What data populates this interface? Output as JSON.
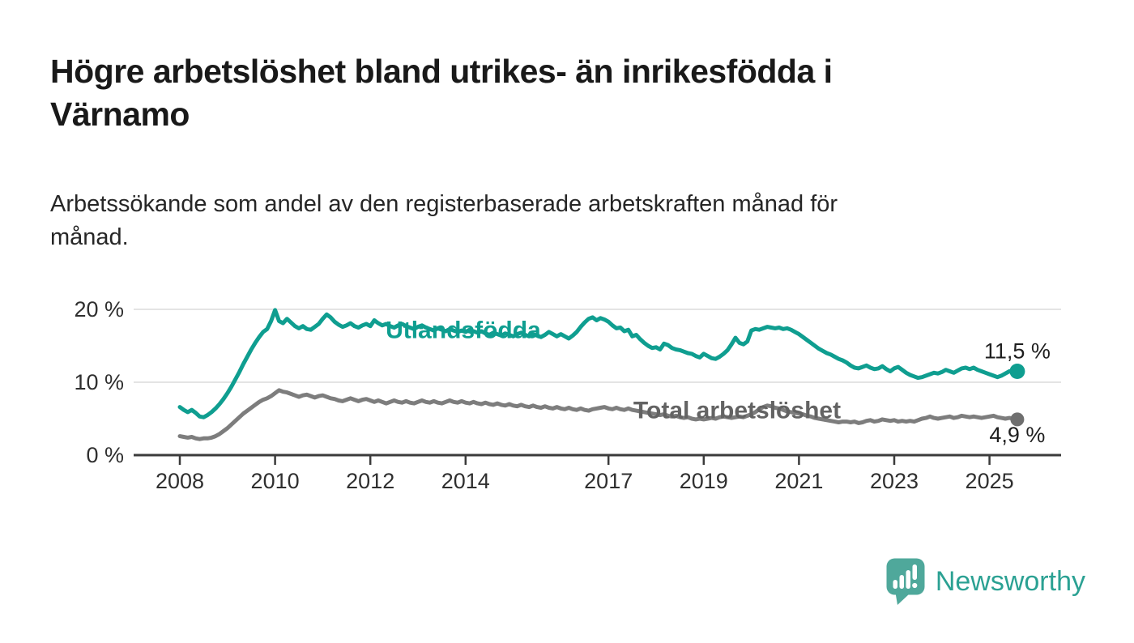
{
  "header": {
    "title_lines": [
      "Högre arbetslöshet bland utrikes- än inrikesfödda i",
      "Värnamo"
    ],
    "subtitle_lines": [
      "Arbetssökande som andel av den registerbaserade arbetskraften månad för",
      "månad."
    ]
  },
  "chart_data": {
    "type": "line",
    "title": "Högre arbetslöshet bland utrikes- än inrikesfödda i Värnamo",
    "subtitle": "Arbetssökande som andel av den registerbaserade arbetskraften månad för månad.",
    "x_unit": "month",
    "x_start": "2008-01",
    "x_end": "2025-08",
    "x_tick_years": [
      "2008",
      "2010",
      "2012",
      "2014",
      "2017",
      "2019",
      "2021",
      "2023",
      "2025"
    ],
    "y_ticks": [
      {
        "value": 0,
        "label": "0 %"
      },
      {
        "value": 10,
        "label": "10 %"
      },
      {
        "value": 20,
        "label": "20 %"
      }
    ],
    "ylim": [
      0,
      21
    ],
    "grid": true,
    "legend_position": "inline-labels",
    "series": [
      {
        "name": "Utlandsfödda",
        "color": "#0f9e90",
        "label_color": "#0f9e90",
        "end_label": "11,5 %",
        "end_value": 11.5,
        "label_anchor": {
          "year": 2013.95,
          "value": 17.3
        },
        "values": [
          6.6,
          6.2,
          5.9,
          6.2,
          5.8,
          5.3,
          5.2,
          5.5,
          5.9,
          6.4,
          7.0,
          7.7,
          8.5,
          9.4,
          10.4,
          11.4,
          12.5,
          13.5,
          14.5,
          15.4,
          16.2,
          16.9,
          17.3,
          18.4,
          19.9,
          18.4,
          18.1,
          18.7,
          18.2,
          17.7,
          17.4,
          17.7,
          17.3,
          17.2,
          17.6,
          18.0,
          18.7,
          19.3,
          18.9,
          18.3,
          17.9,
          17.6,
          17.8,
          18.1,
          17.7,
          17.5,
          17.8,
          18.0,
          17.7,
          18.5,
          18.1,
          17.8,
          18.0,
          17.7,
          17.5,
          17.8,
          18.0,
          17.7,
          17.5,
          17.3,
          17.6,
          17.8,
          17.5,
          17.3,
          17.1,
          17.4,
          17.2,
          17.0,
          17.3,
          17.1,
          16.9,
          17.1,
          16.9,
          17.2,
          17.0,
          16.8,
          17.0,
          16.7,
          16.5,
          16.8,
          16.6,
          16.4,
          16.7,
          16.5,
          16.3,
          16.6,
          16.8,
          16.5,
          16.3,
          16.6,
          16.4,
          16.2,
          16.5,
          16.9,
          16.6,
          16.3,
          16.6,
          16.3,
          16.0,
          16.4,
          16.9,
          17.6,
          18.2,
          18.7,
          18.9,
          18.5,
          18.8,
          18.6,
          18.3,
          17.8,
          17.4,
          17.5,
          17.0,
          17.2,
          16.3,
          16.5,
          15.9,
          15.4,
          15.0,
          14.7,
          14.8,
          14.5,
          15.3,
          15.1,
          14.7,
          14.5,
          14.4,
          14.2,
          14.0,
          13.9,
          13.6,
          13.4,
          13.9,
          13.6,
          13.3,
          13.2,
          13.5,
          13.9,
          14.4,
          15.2,
          16.1,
          15.4,
          15.2,
          15.6,
          17.1,
          17.3,
          17.2,
          17.4,
          17.6,
          17.5,
          17.4,
          17.5,
          17.3,
          17.4,
          17.2,
          16.9,
          16.6,
          16.2,
          15.8,
          15.4,
          15.0,
          14.6,
          14.3,
          14.0,
          13.8,
          13.5,
          13.2,
          13.0,
          12.7,
          12.3,
          12.0,
          11.9,
          12.1,
          12.3,
          12.0,
          11.8,
          11.9,
          12.2,
          11.8,
          11.5,
          11.9,
          12.1,
          11.7,
          11.3,
          11.0,
          10.8,
          10.6,
          10.7,
          10.9,
          11.1,
          11.3,
          11.2,
          11.4,
          11.7,
          11.5,
          11.3,
          11.6,
          11.9,
          12.0,
          11.8,
          12.0,
          11.7,
          11.5,
          11.3,
          11.1,
          10.9,
          10.7,
          10.9,
          11.2,
          11.5,
          11.6,
          11.5
        ]
      },
      {
        "name": "Total arbetslöshet",
        "color": "#7d7d7d",
        "label_color": "#636363",
        "end_label": "4,9 %",
        "end_value": 4.9,
        "label_anchor": {
          "year": 2019.7,
          "value": 6.3
        },
        "values": [
          2.6,
          2.5,
          2.4,
          2.5,
          2.3,
          2.2,
          2.3,
          2.3,
          2.4,
          2.6,
          2.9,
          3.3,
          3.7,
          4.2,
          4.7,
          5.2,
          5.7,
          6.1,
          6.5,
          6.9,
          7.3,
          7.6,
          7.8,
          8.1,
          8.5,
          8.9,
          8.7,
          8.6,
          8.4,
          8.2,
          8.0,
          8.2,
          8.3,
          8.1,
          7.9,
          8.1,
          8.2,
          8.0,
          7.8,
          7.7,
          7.5,
          7.4,
          7.6,
          7.8,
          7.6,
          7.4,
          7.6,
          7.7,
          7.5,
          7.3,
          7.5,
          7.3,
          7.1,
          7.3,
          7.5,
          7.3,
          7.2,
          7.4,
          7.2,
          7.1,
          7.3,
          7.5,
          7.3,
          7.2,
          7.4,
          7.2,
          7.1,
          7.3,
          7.5,
          7.3,
          7.2,
          7.4,
          7.2,
          7.1,
          7.3,
          7.1,
          7.0,
          7.2,
          7.0,
          6.9,
          7.1,
          6.9,
          6.8,
          7.0,
          6.8,
          6.7,
          6.9,
          6.7,
          6.6,
          6.8,
          6.6,
          6.5,
          6.7,
          6.5,
          6.4,
          6.6,
          6.4,
          6.3,
          6.5,
          6.3,
          6.2,
          6.4,
          6.2,
          6.1,
          6.3,
          6.4,
          6.5,
          6.6,
          6.4,
          6.3,
          6.5,
          6.3,
          6.2,
          6.4,
          6.2,
          6.1,
          6.0,
          5.9,
          5.8,
          5.7,
          5.6,
          5.5,
          5.6,
          5.4,
          5.3,
          5.4,
          5.2,
          5.1,
          5.2,
          5.0,
          4.9,
          5.0,
          4.9,
          5.0,
          5.1,
          5.0,
          5.2,
          5.3,
          5.2,
          5.1,
          5.2,
          5.3,
          5.2,
          5.4,
          5.6,
          5.9,
          6.3,
          6.6,
          6.8,
          6.7,
          6.5,
          6.4,
          6.2,
          6.0,
          5.9,
          5.8,
          5.7,
          5.6,
          5.4,
          5.3,
          5.1,
          5.0,
          4.9,
          4.8,
          4.7,
          4.6,
          4.5,
          4.6,
          4.6,
          4.5,
          4.6,
          4.4,
          4.5,
          4.7,
          4.8,
          4.6,
          4.7,
          4.9,
          4.8,
          4.7,
          4.8,
          4.6,
          4.7,
          4.6,
          4.7,
          4.6,
          4.8,
          5.0,
          5.1,
          5.3,
          5.1,
          5.0,
          5.1,
          5.2,
          5.3,
          5.1,
          5.2,
          5.4,
          5.3,
          5.2,
          5.3,
          5.2,
          5.1,
          5.2,
          5.3,
          5.4,
          5.2,
          5.1,
          5.0,
          5.1,
          5.0,
          4.9
        ]
      }
    ]
  },
  "footer": {
    "brand": "Newsworthy",
    "brand_color": "#2ba193",
    "logo_bubble_color": "#4fa89b"
  }
}
